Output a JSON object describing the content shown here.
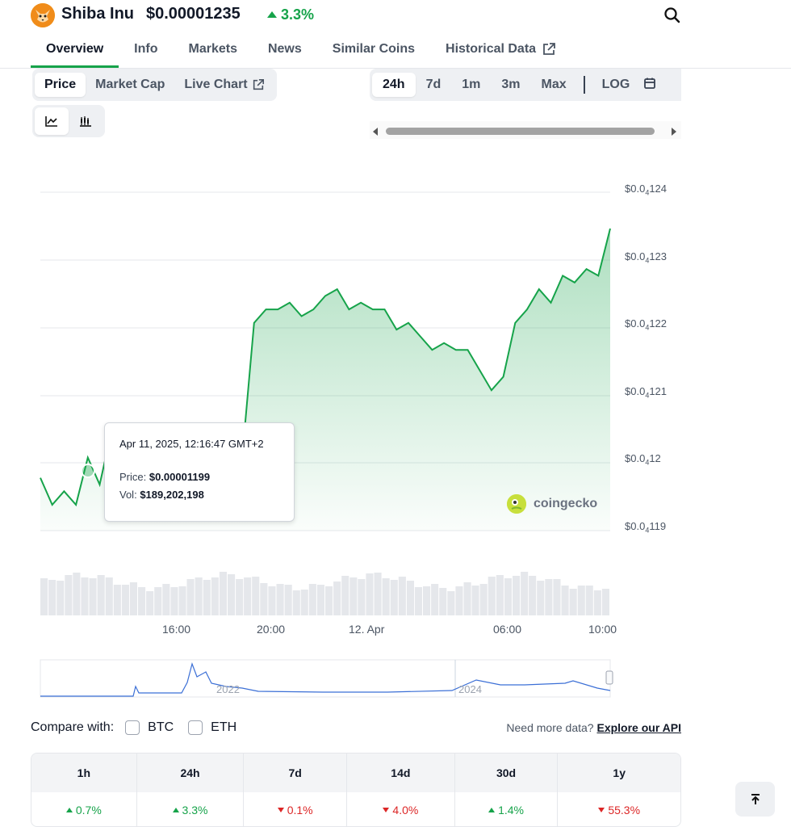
{
  "header": {
    "coin_name": "Shiba Inu",
    "price": "$0.00001235",
    "change": "3.3%",
    "coin_icon": "shiba-inu-logo",
    "search_icon": "search-icon"
  },
  "tabs": [
    {
      "label": "Overview",
      "active": true
    },
    {
      "label": "Info"
    },
    {
      "label": "Markets"
    },
    {
      "label": "News"
    },
    {
      "label": "Similar Coins"
    },
    {
      "label": "Historical Data"
    }
  ],
  "metric_tabs": [
    {
      "label": "Price",
      "active": true
    },
    {
      "label": "Market Cap"
    },
    {
      "label": "Live Chart"
    }
  ],
  "range_tabs": [
    {
      "label": "24h",
      "active": true
    },
    {
      "label": "7d"
    },
    {
      "label": "1m"
    },
    {
      "label": "3m"
    },
    {
      "label": "Max"
    }
  ],
  "scale_label": "LOG",
  "chart_types": [
    "line-chart-icon",
    "candlestick-chart-icon"
  ],
  "tooltip": {
    "date": "Apr 11, 2025, 12:16:47 GMT+2",
    "price_label": "Price:",
    "price_value": "$0.00001199",
    "vol_label": "Vol:",
    "vol_value": "$189,202,198"
  },
  "watermark": "coingecko",
  "chart_data": {
    "type": "area",
    "y_tick_labels": [
      {
        "base": "$0.0",
        "sub": "4",
        "rest": "124"
      },
      {
        "base": "$0.0",
        "sub": "4",
        "rest": "123"
      },
      {
        "base": "$0.0",
        "sub": "4",
        "rest": "122"
      },
      {
        "base": "$0.0",
        "sub": "4",
        "rest": "121"
      },
      {
        "base": "$0.0",
        "sub": "4",
        "rest": "12"
      },
      {
        "base": "$0.0",
        "sub": "4",
        "rest": "119"
      }
    ],
    "ylim": [
      1.19e-05,
      1.24e-05
    ],
    "x_tick_labels": [
      "16:00",
      "20:00",
      "12. Apr",
      "06:00",
      "10:00"
    ],
    "navigator_labels": [
      "2022",
      "2024"
    ],
    "series": [
      {
        "color": "#16a34a",
        "x": [
          0,
          0.5,
          1,
          1.5,
          2,
          2.5,
          3,
          3.5,
          4,
          4.5,
          5,
          5.5,
          6,
          6.5,
          7,
          7.5,
          8,
          8.5,
          9,
          9.5,
          10,
          10.5,
          11,
          11.5,
          12,
          12.5,
          13,
          13.5,
          14,
          14.5,
          15,
          15.5,
          16,
          16.5,
          17,
          17.5,
          18,
          18.5,
          19,
          19.5,
          20,
          20.5,
          21,
          21.5,
          22,
          22.5,
          23,
          23.5,
          24
        ],
        "values": [
          1.197e-05,
          1.193e-05,
          1.195e-05,
          1.193e-05,
          1.2e-05,
          1.196e-05,
          1.204e-05,
          1.199e-05,
          1.198e-05,
          1.201e-05,
          1.199e-05,
          1.198e-05,
          1.2e-05,
          1.199e-05,
          1.198e-05,
          1.2e-05,
          1.201e-05,
          1.2e-05,
          1.22e-05,
          1.222e-05,
          1.222e-05,
          1.223e-05,
          1.221e-05,
          1.222e-05,
          1.224e-05,
          1.225e-05,
          1.222e-05,
          1.223e-05,
          1.222e-05,
          1.222e-05,
          1.219e-05,
          1.22e-05,
          1.218e-05,
          1.216e-05,
          1.217e-05,
          1.216e-05,
          1.216e-05,
          1.213e-05,
          1.21e-05,
          1.212e-05,
          1.22e-05,
          1.222e-05,
          1.225e-05,
          1.223e-05,
          1.227e-05,
          1.226e-05,
          1.228e-05,
          1.227e-05,
          1.234e-05
        ]
      }
    ]
  },
  "compare": {
    "label": "Compare with:",
    "options": [
      "BTC",
      "ETH"
    ],
    "api_prefix": "Need more data?",
    "api_link": "Explore our API"
  },
  "performance": {
    "headers": [
      "1h",
      "24h",
      "7d",
      "14d",
      "30d",
      "1y"
    ],
    "values": [
      {
        "value": "0.7%",
        "dir": "up"
      },
      {
        "value": "3.3%",
        "dir": "up"
      },
      {
        "value": "0.1%",
        "dir": "down"
      },
      {
        "value": "4.0%",
        "dir": "down"
      },
      {
        "value": "1.4%",
        "dir": "up"
      },
      {
        "value": "55.3%",
        "dir": "down"
      }
    ]
  }
}
